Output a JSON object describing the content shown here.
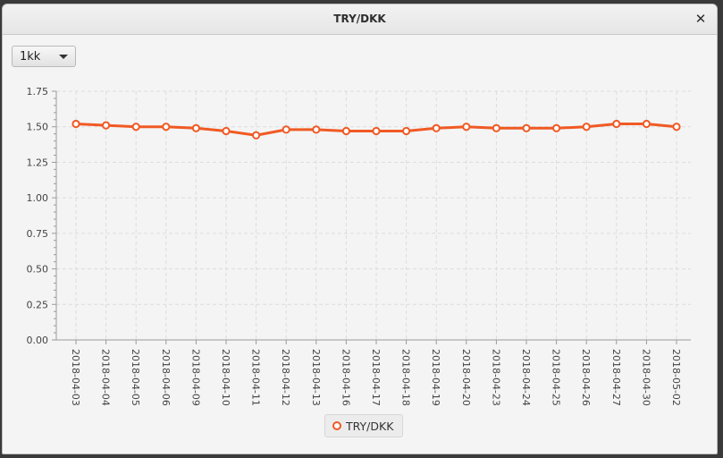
{
  "window": {
    "title": "TRY/DKK",
    "close_glyph": "✕"
  },
  "period_select": {
    "value": "1kk"
  },
  "colors": {
    "series": "#f05a24",
    "grid": "#dcdcdc",
    "axis": "#9a9a9a"
  },
  "chart_data": {
    "type": "line",
    "title": "",
    "xlabel": "",
    "ylabel": "",
    "ylim": [
      0,
      1.75
    ],
    "y_ticks": [
      "0.00",
      "0.25",
      "0.50",
      "0.75",
      "1.00",
      "1.25",
      "1.50",
      "1.75"
    ],
    "grid": true,
    "legend_position": "bottom",
    "categories": [
      "2018-04-03",
      "2018-04-04",
      "2018-04-05",
      "2018-04-06",
      "2018-04-09",
      "2018-04-10",
      "2018-04-11",
      "2018-04-12",
      "2018-04-13",
      "2018-04-16",
      "2018-04-17",
      "2018-04-18",
      "2018-04-19",
      "2018-04-20",
      "2018-04-23",
      "2018-04-24",
      "2018-04-25",
      "2018-04-26",
      "2018-04-27",
      "2018-04-30",
      "2018-05-02"
    ],
    "series": [
      {
        "name": "TRY/DKK",
        "values": [
          1.52,
          1.51,
          1.5,
          1.5,
          1.49,
          1.47,
          1.44,
          1.48,
          1.48,
          1.47,
          1.47,
          1.47,
          1.49,
          1.5,
          1.49,
          1.49,
          1.49,
          1.5,
          1.52,
          1.52,
          1.5
        ]
      }
    ]
  }
}
